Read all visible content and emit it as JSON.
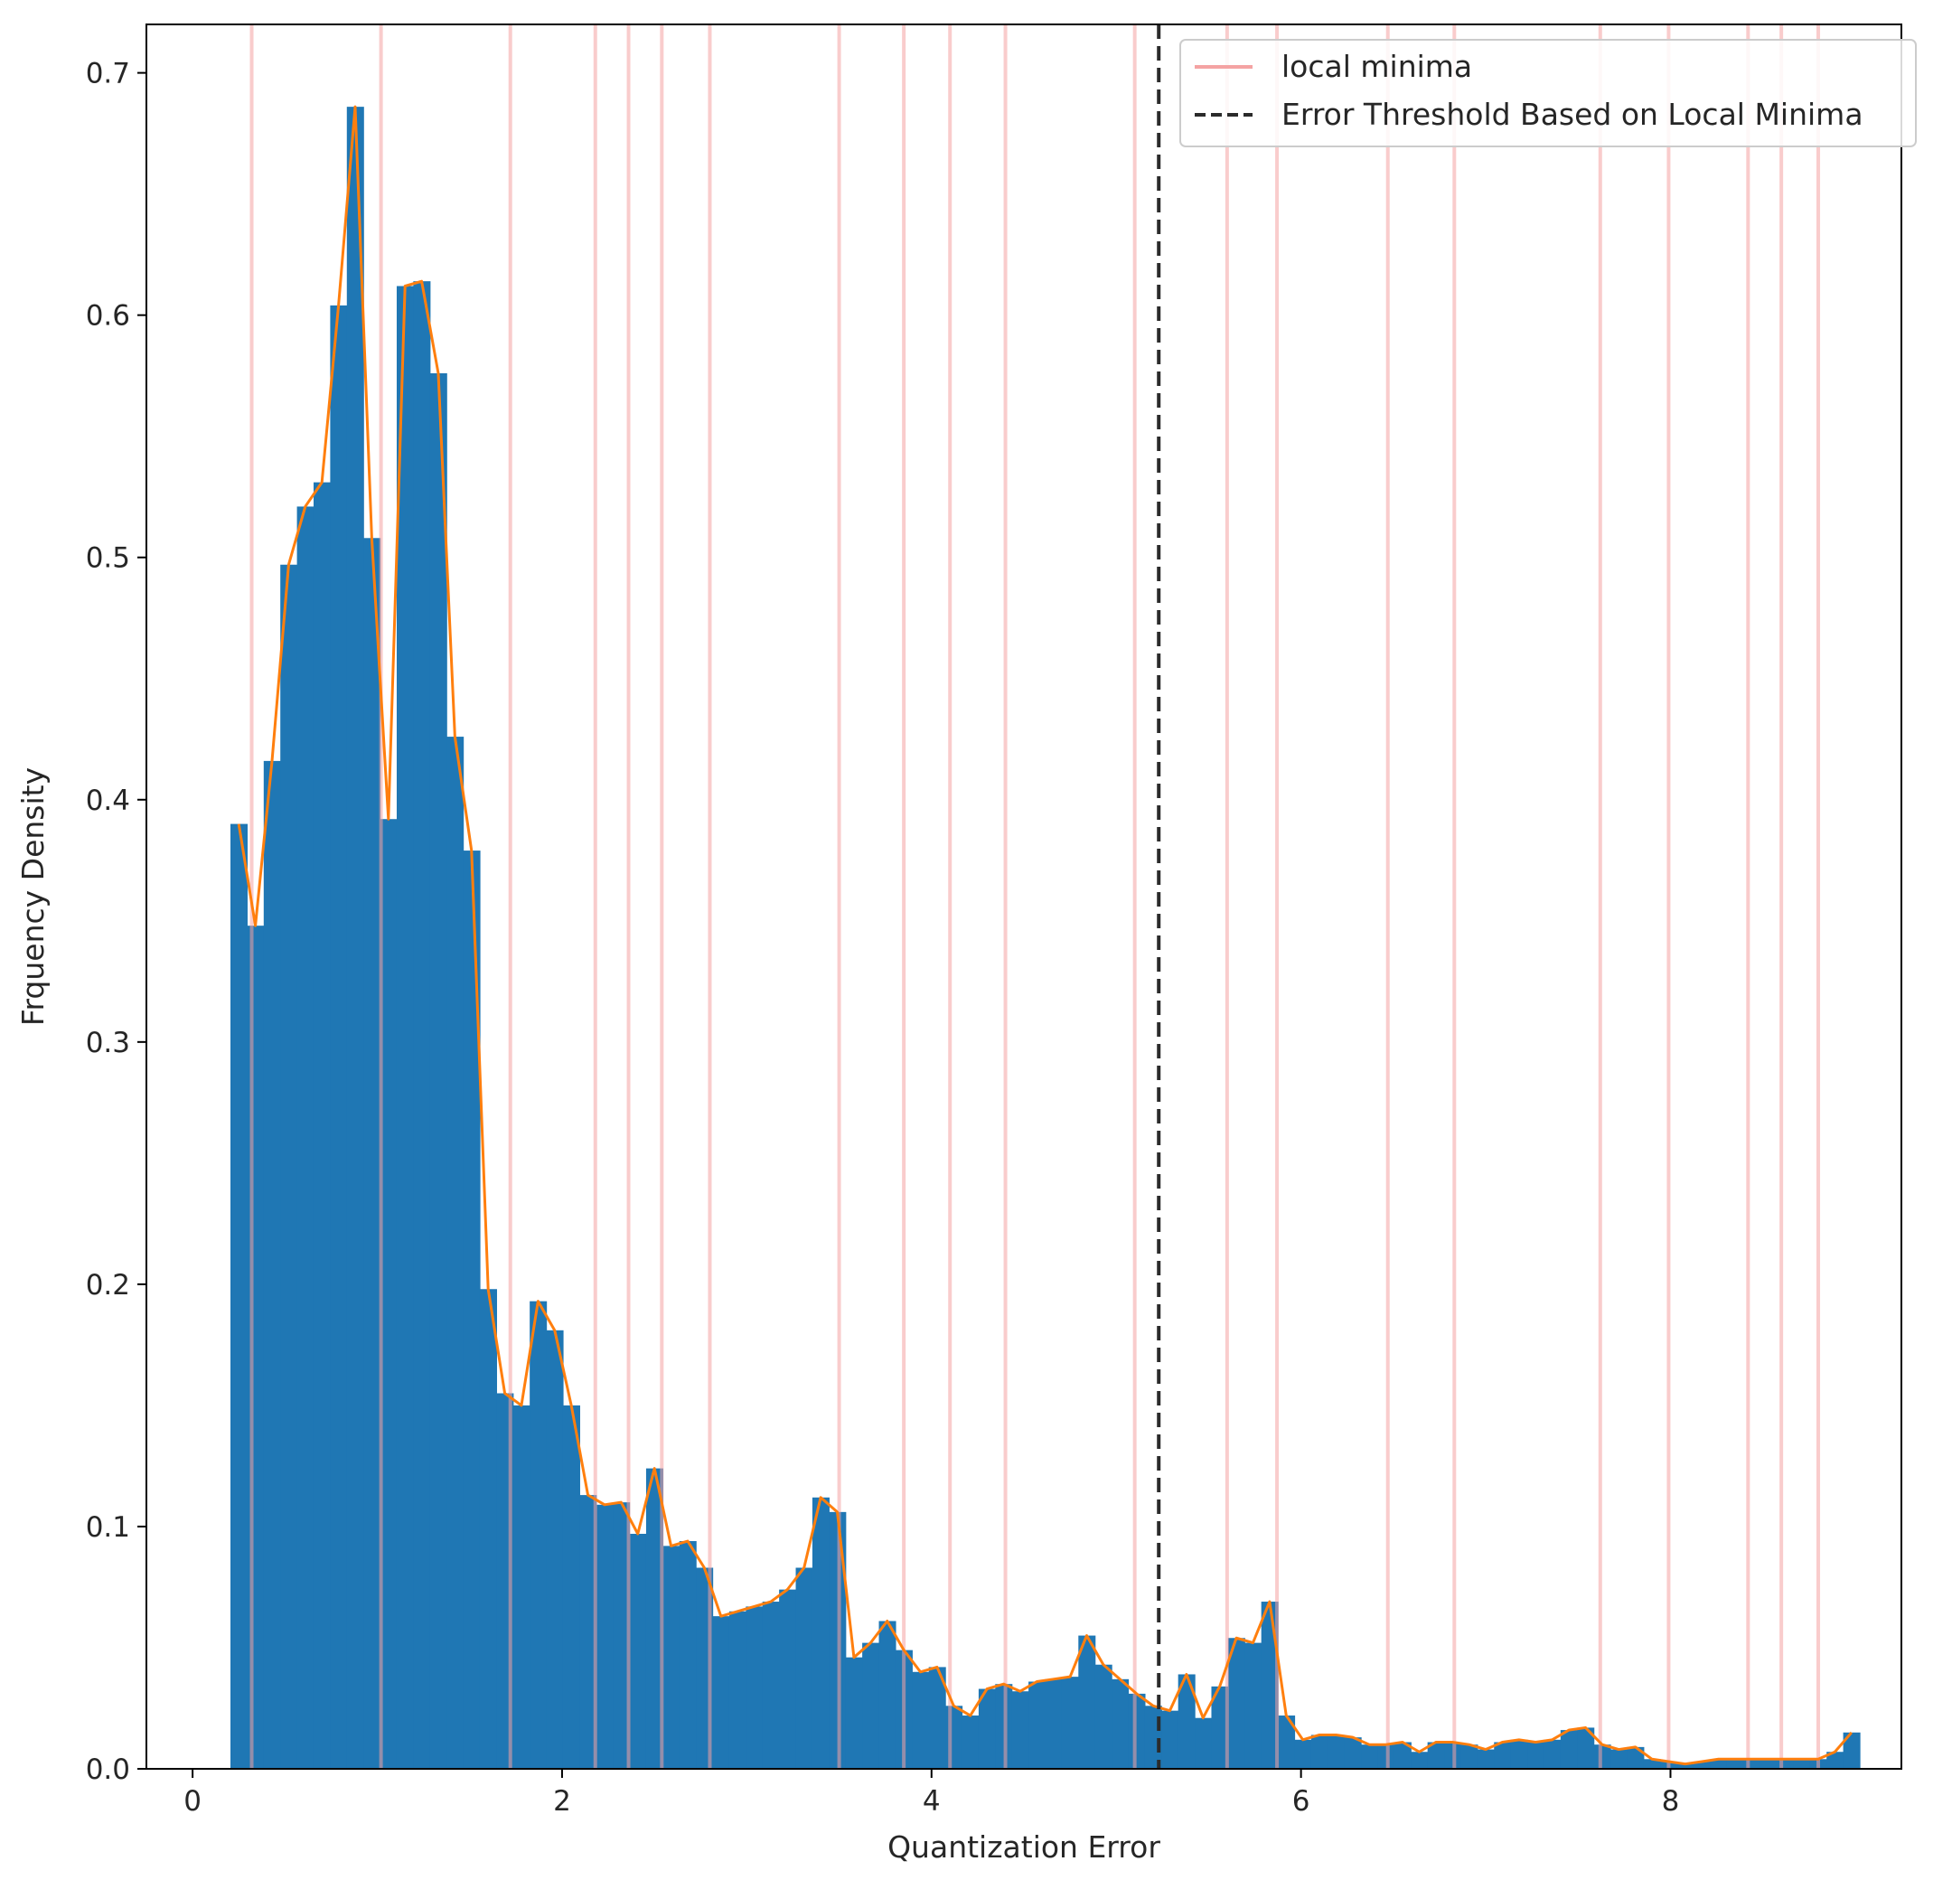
{
  "chart_data": {
    "type": "bar",
    "title": "",
    "xlabel": "Quantization Error",
    "ylabel": "Frquency Density",
    "xlim": [
      -0.25,
      9.25
    ],
    "ylim": [
      0,
      0.72
    ],
    "x_ticks": [
      0,
      2,
      4,
      6,
      8
    ],
    "y_ticks": [
      0.0,
      0.1,
      0.2,
      0.3,
      0.4,
      0.5,
      0.6,
      0.7
    ],
    "grid": false,
    "legend_position": "upper-right",
    "colors": {
      "bars": "#1f77b4",
      "curve": "#ff7f0e",
      "local_minima": "#f4a3a3",
      "threshold": "#2b2b2b"
    },
    "histogram": {
      "bin_width": 0.0901,
      "x": [
        0.25,
        0.34,
        0.43,
        0.52,
        0.61,
        0.7,
        0.79,
        0.88,
        0.97,
        1.06,
        1.15,
        1.24,
        1.33,
        1.42,
        1.51,
        1.6,
        1.69,
        1.78,
        1.87,
        1.96,
        2.05,
        2.14,
        2.23,
        2.32,
        2.41,
        2.5,
        2.59,
        2.68,
        2.77,
        2.86,
        2.95,
        3.04,
        3.13,
        3.22,
        3.31,
        3.4,
        3.49,
        3.58,
        3.67,
        3.76,
        3.85,
        3.94,
        4.03,
        4.12,
        4.21,
        4.3,
        4.39,
        4.48,
        4.57,
        4.66,
        4.75,
        4.84,
        4.93,
        5.02,
        5.11,
        5.2,
        5.29,
        5.38,
        5.47,
        5.56,
        5.65,
        5.74,
        5.83,
        5.92,
        6.01,
        6.1,
        6.19,
        6.28,
        6.37,
        6.46,
        6.55,
        6.64,
        6.73,
        6.82,
        6.91,
        7.0,
        7.09,
        7.18,
        7.27,
        7.36,
        7.45,
        7.54,
        7.63,
        7.72,
        7.81,
        7.9,
        7.99,
        8.08,
        8.17,
        8.26,
        8.35,
        8.44,
        8.53,
        8.62,
        8.71,
        8.8,
        8.89,
        8.98
      ],
      "values": [
        0.39,
        0.348,
        0.416,
        0.497,
        0.521,
        0.531,
        0.604,
        0.686,
        0.508,
        0.392,
        0.612,
        0.614,
        0.576,
        0.426,
        0.379,
        0.198,
        0.155,
        0.15,
        0.193,
        0.181,
        0.15,
        0.113,
        0.109,
        0.11,
        0.097,
        0.124,
        0.092,
        0.094,
        0.083,
        0.063,
        0.065,
        0.067,
        0.069,
        0.074,
        0.083,
        0.112,
        0.106,
        0.046,
        0.052,
        0.061,
        0.049,
        0.04,
        0.042,
        0.026,
        0.022,
        0.033,
        0.035,
        0.032,
        0.036,
        0.037,
        0.038,
        0.055,
        0.043,
        0.037,
        0.031,
        0.026,
        0.024,
        0.039,
        0.021,
        0.034,
        0.054,
        0.052,
        0.069,
        0.022,
        0.012,
        0.014,
        0.014,
        0.013,
        0.01,
        0.01,
        0.011,
        0.007,
        0.011,
        0.011,
        0.01,
        0.008,
        0.011,
        0.012,
        0.011,
        0.012,
        0.016,
        0.017,
        0.01,
        0.008,
        0.009,
        0.004,
        0.003,
        0.002,
        0.003,
        0.004,
        0.004,
        0.004,
        0.004,
        0.004,
        0.004,
        0.004,
        0.007,
        0.015
      ]
    },
    "series": [
      {
        "name": "local minima",
        "type": "vline",
        "x": [
          0.32,
          1.02,
          1.72,
          2.18,
          2.36,
          2.54,
          2.8,
          3.5,
          3.85,
          4.1,
          4.4,
          5.1,
          5.6,
          5.87,
          6.47,
          6.83,
          7.62,
          7.99,
          8.42,
          8.6,
          8.8
        ]
      },
      {
        "name": "Error Threshold Based on Local Minima",
        "type": "vline",
        "x": [
          5.23
        ]
      }
    ]
  }
}
